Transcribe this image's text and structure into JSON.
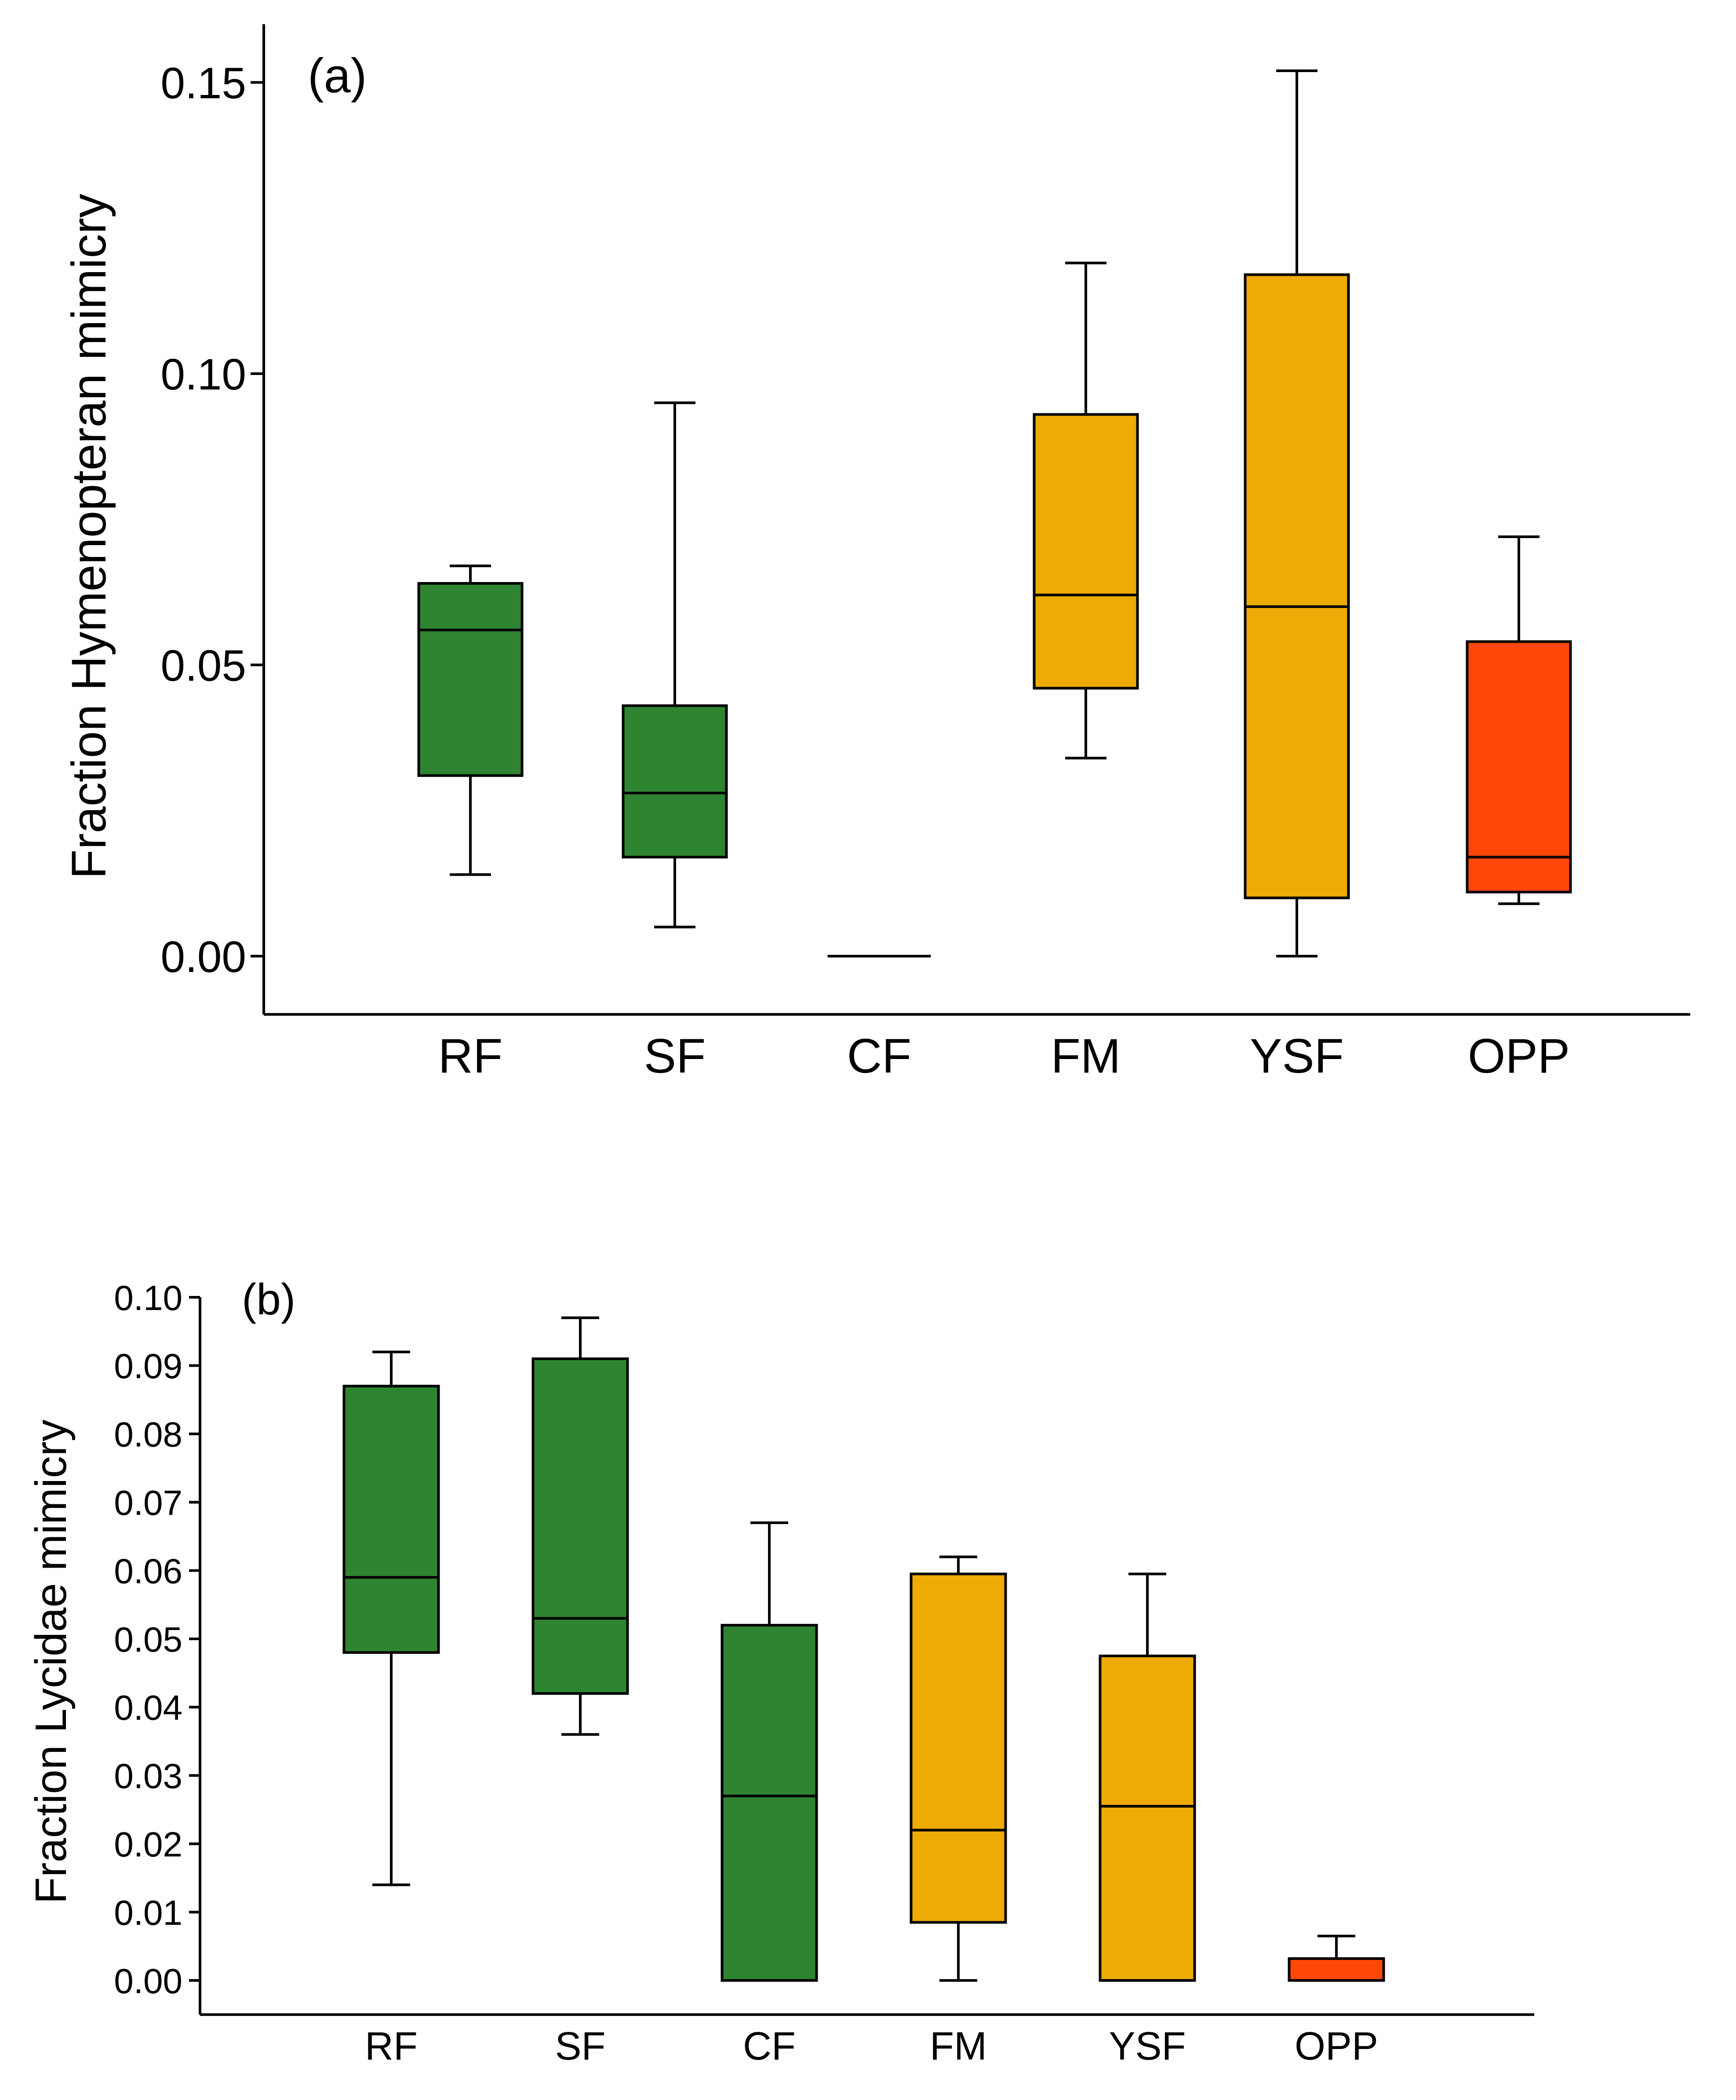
{
  "colors": {
    "green": "#2e8431",
    "orange": "#eeaa05",
    "red": "#ff4709",
    "line": "#000000"
  },
  "chart_data": [
    {
      "type": "box",
      "panel_label": "(a)",
      "ylabel": "Fraction Hymenopteran mimicry",
      "ylim": [
        -0.01,
        0.16
      ],
      "yticks": [
        0.0,
        0.05,
        0.1,
        0.15
      ],
      "ytick_labels": [
        "0.00",
        "0.05",
        "0.10",
        "0.15"
      ],
      "categories": [
        "RF",
        "SF",
        "CF",
        "FM",
        "YSF",
        "OPP"
      ],
      "boxes": [
        {
          "category": "RF",
          "color": "green",
          "whisker_low": 0.014,
          "q1": 0.031,
          "median": 0.056,
          "q3": 0.064,
          "whisker_high": 0.067
        },
        {
          "category": "SF",
          "color": "green",
          "whisker_low": 0.005,
          "q1": 0.017,
          "median": 0.028,
          "q3": 0.043,
          "whisker_high": 0.095
        },
        {
          "category": "CF",
          "color": "green",
          "whisker_low": 0.0,
          "q1": 0.0,
          "median": 0.0,
          "q3": 0.0,
          "whisker_high": 0.0
        },
        {
          "category": "FM",
          "color": "orange",
          "whisker_low": 0.034,
          "q1": 0.046,
          "median": 0.062,
          "q3": 0.093,
          "whisker_high": 0.119
        },
        {
          "category": "YSF",
          "color": "orange",
          "whisker_low": 0.0,
          "q1": 0.01,
          "median": 0.06,
          "q3": 0.117,
          "whisker_high": 0.152
        },
        {
          "category": "OPP",
          "color": "red",
          "whisker_low": 0.009,
          "q1": 0.011,
          "median": 0.017,
          "q3": 0.054,
          "whisker_high": 0.072
        }
      ]
    },
    {
      "type": "box",
      "panel_label": "(b)",
      "ylabel": "Fraction Lycidae mimicry",
      "ylim": [
        -0.005,
        0.1
      ],
      "yticks": [
        0.0,
        0.01,
        0.02,
        0.03,
        0.04,
        0.05,
        0.06,
        0.07,
        0.08,
        0.09,
        0.1
      ],
      "ytick_labels": [
        "0.00",
        "0.01",
        "0.02",
        "0.03",
        "0.04",
        "0.05",
        "0.06",
        "0.07",
        "0.08",
        "0.09",
        "0.10"
      ],
      "categories": [
        "RF",
        "SF",
        "CF",
        "FM",
        "YSF",
        "OPP"
      ],
      "boxes": [
        {
          "category": "RF",
          "color": "green",
          "whisker_low": 0.014,
          "q1": 0.048,
          "median": 0.059,
          "q3": 0.087,
          "whisker_high": 0.092
        },
        {
          "category": "SF",
          "color": "green",
          "whisker_low": 0.036,
          "q1": 0.042,
          "median": 0.053,
          "q3": 0.091,
          "whisker_high": 0.097
        },
        {
          "category": "CF",
          "color": "green",
          "whisker_low": 0.0,
          "q1": 0.0,
          "median": 0.027,
          "q3": 0.052,
          "whisker_high": 0.067
        },
        {
          "category": "FM",
          "color": "orange",
          "whisker_low": 0.0,
          "q1": 0.0085,
          "median": 0.022,
          "q3": 0.0595,
          "whisker_high": 0.062
        },
        {
          "category": "YSF",
          "color": "orange",
          "whisker_low": 0.0,
          "q1": 0.0,
          "median": 0.0255,
          "q3": 0.0475,
          "whisker_high": 0.0595
        },
        {
          "category": "OPP",
          "color": "red",
          "whisker_low": 0.0,
          "q1": 0.0,
          "median": 0.0,
          "q3": 0.0032,
          "whisker_high": 0.0065
        }
      ]
    }
  ]
}
